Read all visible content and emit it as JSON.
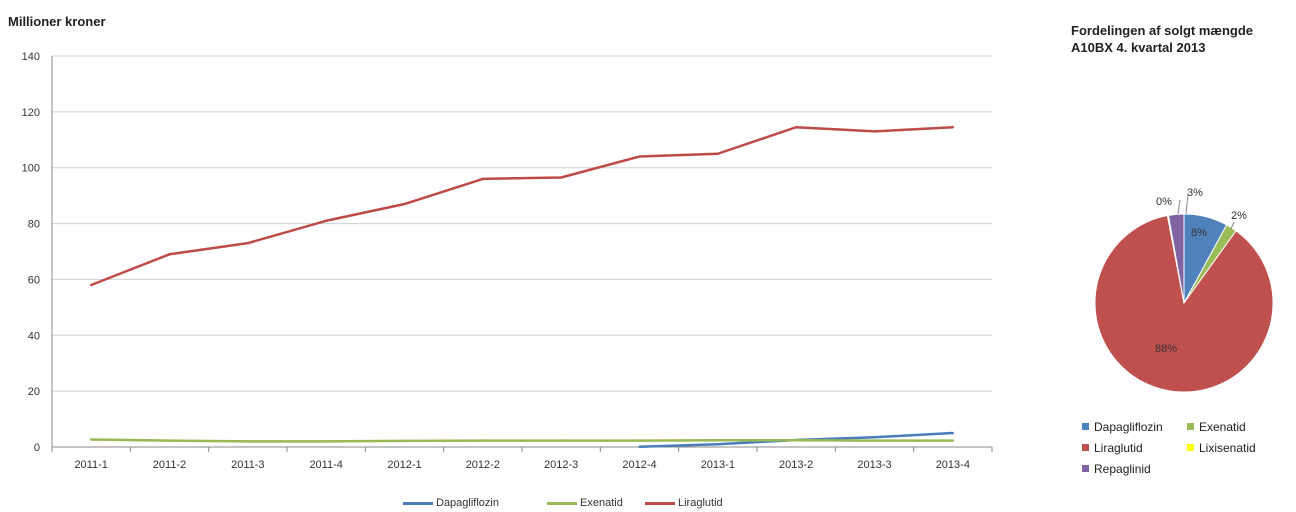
{
  "chart_data": [
    {
      "type": "line",
      "ylabel": "Millioner kroner",
      "ylim": [
        0,
        140
      ],
      "yticks": [
        0,
        20,
        40,
        60,
        80,
        100,
        120,
        140
      ],
      "grid": true,
      "legend_position": "bottom",
      "categories": [
        "2011-1",
        "2011-2",
        "2011-3",
        "2011-4",
        "2012-1",
        "2012-2",
        "2012-3",
        "2012-4",
        "2013-1",
        "2013-2",
        "2013-3",
        "2013-4"
      ],
      "series": [
        {
          "name": "Dapagliflozin",
          "color": "#4a7ebb",
          "values": [
            null,
            null,
            null,
            null,
            null,
            null,
            null,
            0.1,
            1.0,
            2.5,
            3.5,
            5.0
          ]
        },
        {
          "name": "Exenatid",
          "color": "#98b954",
          "values": [
            2.7,
            2.3,
            2.0,
            2.0,
            2.2,
            2.3,
            2.3,
            2.3,
            2.4,
            2.4,
            2.3,
            2.3
          ]
        },
        {
          "name": "Liraglutid",
          "color": "#be4b48",
          "values": [
            58,
            69,
            73,
            81,
            87,
            96,
            96.5,
            104,
            105,
            114.5,
            113,
            114.5
          ]
        }
      ]
    },
    {
      "type": "pie",
      "title": "Fordelingen af solgt mængde A10BX  4. kvartal 2013",
      "title_lines": [
        "Fordelingen af solgt mængde",
        "A10BX  4. kvartal 2013"
      ],
      "slices": [
        {
          "name": "Dapagliflozin",
          "value": 8,
          "label": "8%",
          "color": "#4f81bd"
        },
        {
          "name": "Exenatid",
          "value": 2,
          "label": "2%",
          "color": "#9bbb59"
        },
        {
          "name": "Liraglutid",
          "value": 87.5,
          "label": "88%",
          "color": "#c0504d"
        },
        {
          "name": "Lixisenatid",
          "value": 0.2,
          "label": "0%",
          "color": "#ffff00"
        },
        {
          "name": "Repaglinid",
          "value": 2.8,
          "label": "3%",
          "color": "#8064a2"
        }
      ],
      "legend": [
        "Dapagliflozin",
        "Exenatid",
        "Liraglutid",
        "Lixisenatid",
        "Repaglinid"
      ],
      "legend_position": "bottom"
    }
  ]
}
